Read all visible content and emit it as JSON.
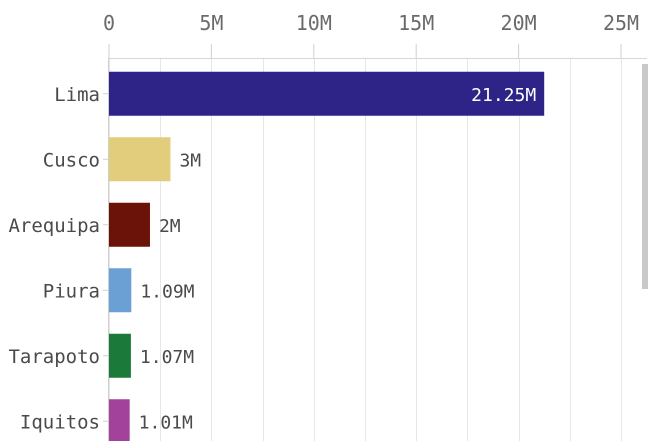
{
  "chart_data": {
    "type": "bar",
    "orientation": "horizontal",
    "categories": [
      "Lima",
      "Cusco",
      "Arequipa",
      "Piura",
      "Tarapoto",
      "Iquitos"
    ],
    "values": [
      21250000,
      3000000,
      2000000,
      1090000,
      1070000,
      1010000
    ],
    "value_labels": [
      "21.25M",
      "3M",
      "2M",
      "1.09M",
      "1.07M",
      "1.01M"
    ],
    "colors": [
      "#2e2387",
      "#e2cd7c",
      "#6b1209",
      "#6aa0d4",
      "#1b7a3a",
      "#a3429b"
    ],
    "xlim": [
      0,
      25000000
    ],
    "x_ticks": [
      {
        "value": 0,
        "label": "0"
      },
      {
        "value": 5000000,
        "label": "5M"
      },
      {
        "value": 10000000,
        "label": "10M"
      },
      {
        "value": 15000000,
        "label": "15M"
      },
      {
        "value": 20000000,
        "label": "20M"
      },
      {
        "value": 25000000,
        "label": "25M"
      }
    ],
    "x_axis_position": "top",
    "grid": true,
    "title": "",
    "xlabel": "",
    "ylabel": ""
  }
}
